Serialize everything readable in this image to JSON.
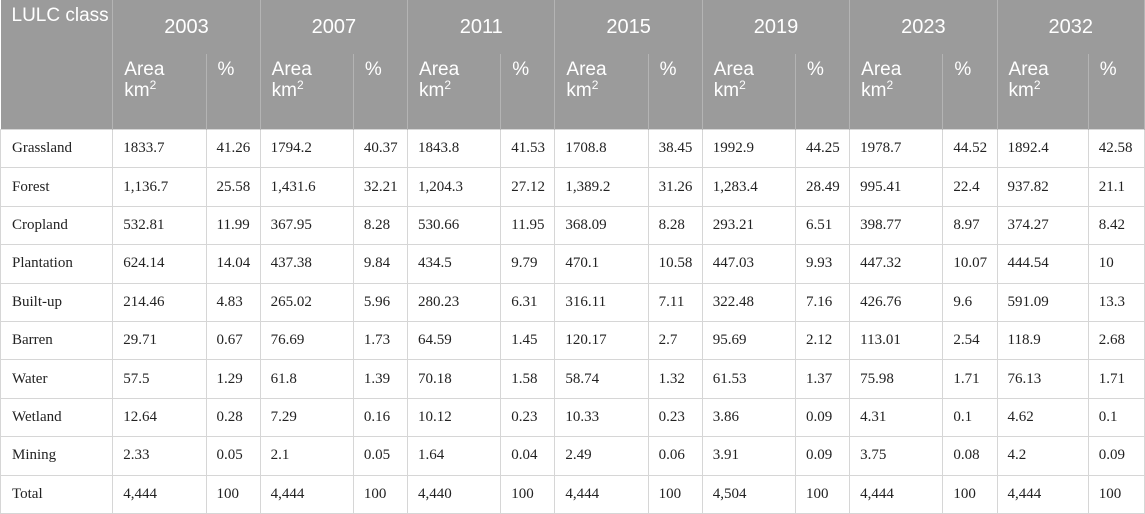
{
  "header": {
    "lulc_label": "LULC class",
    "years": [
      "2003",
      "2007",
      "2011",
      "2015",
      "2019",
      "2023",
      "2032"
    ],
    "area_label": "Area",
    "area_unit": "km",
    "area_unit_sup": "2",
    "pct_label": "%"
  },
  "rows": [
    {
      "label": "Grassland",
      "values": [
        "1833.7",
        "41.26",
        "1794.2",
        "40.37",
        "1843.8",
        "41.53",
        "1708.8",
        "38.45",
        "1992.9",
        "44.25",
        "1978.7",
        "44.52",
        "1892.4",
        "42.58"
      ]
    },
    {
      "label": "Forest",
      "values": [
        "1,136.7",
        "25.58",
        "1,431.6",
        "32.21",
        "1,204.3",
        "27.12",
        "1,389.2",
        "31.26",
        "1,283.4",
        "28.49",
        "995.41",
        "22.4",
        "937.82",
        "21.1"
      ]
    },
    {
      "label": "Cropland",
      "values": [
        "532.81",
        "11.99",
        "367.95",
        "8.28",
        "530.66",
        "11.95",
        "368.09",
        "8.28",
        "293.21",
        "6.51",
        "398.77",
        "8.97",
        "374.27",
        "8.42"
      ]
    },
    {
      "label": "Plantation",
      "values": [
        "624.14",
        "14.04",
        "437.38",
        "9.84",
        "434.5",
        "9.79",
        "470.1",
        "10.58",
        "447.03",
        "9.93",
        "447.32",
        "10.07",
        "444.54",
        "10"
      ]
    },
    {
      "label": "Built-up",
      "values": [
        "214.46",
        "4.83",
        "265.02",
        "5.96",
        "280.23",
        "6.31",
        "316.11",
        "7.11",
        "322.48",
        "7.16",
        "426.76",
        "9.6",
        "591.09",
        "13.3"
      ]
    },
    {
      "label": "Barren",
      "values": [
        "29.71",
        "0.67",
        "76.69",
        "1.73",
        "64.59",
        "1.45",
        "120.17",
        "2.7",
        "95.69",
        "2.12",
        "113.01",
        "2.54",
        "118.9",
        "2.68"
      ]
    },
    {
      "label": "Water",
      "values": [
        "57.5",
        "1.29",
        "61.8",
        "1.39",
        "70.18",
        "1.58",
        "58.74",
        "1.32",
        "61.53",
        "1.37",
        "75.98",
        "1.71",
        "76.13",
        "1.71"
      ]
    },
    {
      "label": "Wetland",
      "values": [
        "12.64",
        "0.28",
        "7.29",
        "0.16",
        "10.12",
        "0.23",
        "10.33",
        "0.23",
        "3.86",
        "0.09",
        "4.31",
        "0.1",
        "4.62",
        "0.1"
      ]
    },
    {
      "label": "Mining",
      "values": [
        "2.33",
        "0.05",
        "2.1",
        "0.05",
        "1.64",
        "0.04",
        "2.49",
        "0.06",
        "3.91",
        "0.09",
        "3.75",
        "0.08",
        "4.2",
        "0.09"
      ]
    },
    {
      "label": "Total",
      "values": [
        "4,444",
        "100",
        "4,444",
        "100",
        "4,440",
        "100",
        "4,444",
        "100",
        "4,504",
        "100",
        "4,444",
        "100",
        "4,444",
        "100"
      ]
    }
  ]
}
